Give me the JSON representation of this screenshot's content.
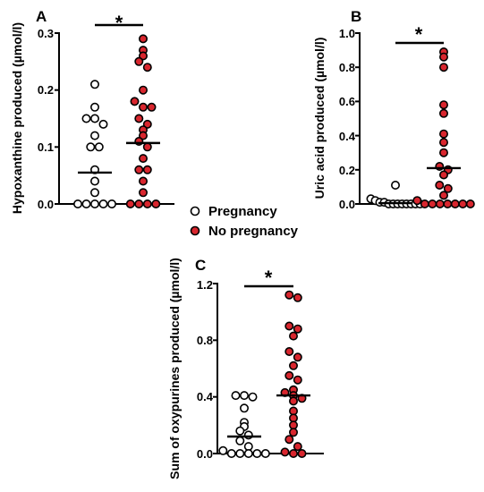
{
  "chart_data": [
    {
      "type": "scatter",
      "panel_label": "A",
      "ylabel": "Hypoxanthine produced (µmol/l)",
      "ylim": [
        0,
        0.3
      ],
      "yticks": [
        "0.0",
        "0.1",
        "0.2",
        "0.3"
      ],
      "significance": "*",
      "series": [
        {
          "group": "pregnancy",
          "mean": 0.055,
          "values": [
            0.21,
            0.17,
            0.15,
            0.15,
            0.14,
            0.12,
            0.1,
            0.1,
            0.06,
            0.04,
            0.02,
            0.0,
            0.0,
            0.0,
            0.0,
            0.0
          ]
        },
        {
          "group": "no-pregnancy",
          "mean": 0.107,
          "values": [
            0.29,
            0.27,
            0.26,
            0.25,
            0.24,
            0.2,
            0.18,
            0.17,
            0.17,
            0.15,
            0.14,
            0.13,
            0.12,
            0.11,
            0.1,
            0.08,
            0.06,
            0.06,
            0.04,
            0.02,
            0.0,
            0.0,
            0.0,
            0.0
          ]
        }
      ]
    },
    {
      "type": "scatter",
      "panel_label": "B",
      "ylabel": "Uric acid produced (µmol/l)",
      "ylim": [
        0,
        1.0
      ],
      "yticks": [
        "0.0",
        "0.2",
        "0.4",
        "0.6",
        "0.8",
        "1.0"
      ],
      "significance": "*",
      "series": [
        {
          "group": "pregnancy",
          "mean": 0.005,
          "values": [
            0.11,
            0.03,
            0.02,
            0.01,
            0.01,
            0.0,
            0.0,
            0.0,
            0.0,
            0.0,
            0.0,
            0.0,
            0.0
          ]
        },
        {
          "group": "no-pregnancy",
          "mean": 0.21,
          "values": [
            0.89,
            0.86,
            0.8,
            0.58,
            0.53,
            0.41,
            0.36,
            0.3,
            0.22,
            0.2,
            0.17,
            0.11,
            0.09,
            0.05,
            0.02,
            0.0,
            0.0,
            0.0,
            0.0,
            0.0,
            0.0,
            0.0
          ]
        }
      ]
    },
    {
      "type": "scatter",
      "panel_label": "C",
      "ylabel": "Sum of oxypurines produced (µmol/l)",
      "ylim": [
        0,
        1.2
      ],
      "yticks": [
        "0.0",
        "0.4",
        "0.8",
        "1.2"
      ],
      "significance": "*",
      "series": [
        {
          "group": "pregnancy",
          "mean": 0.12,
          "values": [
            0.41,
            0.41,
            0.4,
            0.32,
            0.22,
            0.19,
            0.16,
            0.13,
            0.09,
            0.05,
            0.02,
            0.0,
            0.0,
            0.0,
            0.0,
            0.0
          ]
        },
        {
          "group": "no-pregnancy",
          "mean": 0.41,
          "values": [
            1.12,
            1.1,
            0.9,
            0.88,
            0.83,
            0.72,
            0.68,
            0.62,
            0.55,
            0.52,
            0.45,
            0.43,
            0.41,
            0.39,
            0.37,
            0.3,
            0.25,
            0.2,
            0.15,
            0.1,
            0.05,
            0.01,
            0.0,
            0.0
          ]
        }
      ]
    }
  ],
  "legend": {
    "items": [
      {
        "label": "Pregnancy",
        "marker": "open-circle"
      },
      {
        "label": "No pregnancy",
        "marker": "red-circle"
      }
    ],
    "red_fill": "#d8262e",
    "open_fill": "#ffffff"
  }
}
